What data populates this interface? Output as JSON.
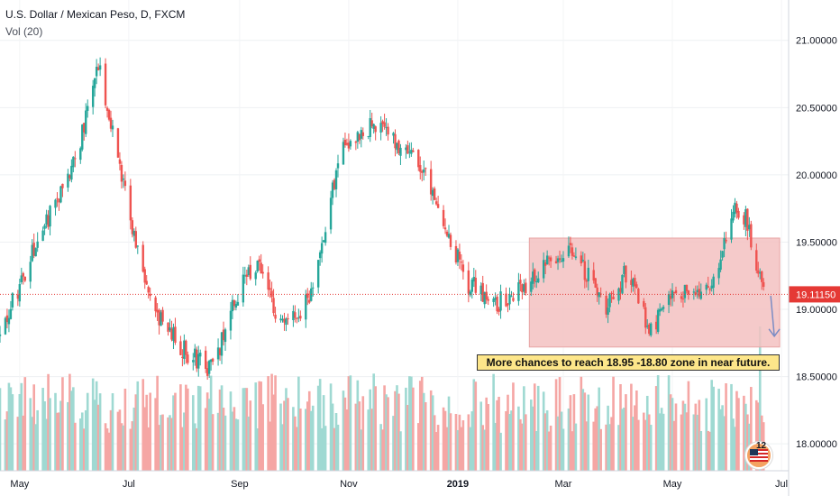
{
  "legend": {
    "title": "U.S. Dollar / Mexican Peso, D, FXCM",
    "volume": "Vol (20)"
  },
  "annotation": {
    "text": "More chances to reach 18.95 -18.80 zone in near future.",
    "badge_count": "12"
  },
  "colors": {
    "up": "#26a69a",
    "down": "#ef5350",
    "volume_up": "#9fd9d2",
    "volume_down": "#f5a6a4",
    "current_price_line": "#e53935",
    "zone_fill": "#f3c1c1",
    "arrow": "#7b8cc4",
    "annotation_bg": "#fde68a"
  },
  "chart_data": {
    "type": "candlestick",
    "symbol": "U.S. Dollar / Mexican Peso, D, FXCM",
    "price_axis": {
      "ticks": [
        "21.00000",
        "20.50000",
        "20.00000",
        "19.50000",
        "19.00000",
        "18.50000",
        "18.00000"
      ],
      "range": [
        17.8,
        21.3
      ]
    },
    "time_axis": {
      "ticks": [
        "May",
        "Jul",
        "Sep",
        "Nov",
        "2019",
        "Mar",
        "May",
        "Jul"
      ],
      "range": [
        "2018-04-20",
        "2019-07-05"
      ]
    },
    "current_price": "19.11150",
    "current_price_value": 19.1115,
    "zone": {
      "from_date": "2019-02-10",
      "to_date": "2019-06-30",
      "low": 18.72,
      "high": 19.53
    },
    "arrow": {
      "from_date": "2019-06-25",
      "to_date": "2019-06-27",
      "from_price": 19.1,
      "to_price": 18.8
    },
    "keypoints": [
      {
        "date": "2018-04-20",
        "close": 18.8
      },
      {
        "date": "2018-05-10",
        "close": 19.5
      },
      {
        "date": "2018-06-01",
        "close": 20.1
      },
      {
        "date": "2018-06-14",
        "close": 20.85
      },
      {
        "date": "2018-06-28",
        "close": 19.95
      },
      {
        "date": "2018-07-12",
        "close": 19.05
      },
      {
        "date": "2018-07-31",
        "close": 18.7
      },
      {
        "date": "2018-08-18",
        "close": 18.55
      },
      {
        "date": "2018-08-28",
        "close": 19.05
      },
      {
        "date": "2018-09-10",
        "close": 19.35
      },
      {
        "date": "2018-09-26",
        "close": 18.85
      },
      {
        "date": "2018-10-10",
        "close": 19.1
      },
      {
        "date": "2018-10-28",
        "close": 20.2
      },
      {
        "date": "2018-11-15",
        "close": 20.4
      },
      {
        "date": "2018-12-01",
        "close": 20.2
      },
      {
        "date": "2018-12-18",
        "close": 19.9
      },
      {
        "date": "2019-01-06",
        "close": 19.2
      },
      {
        "date": "2019-01-24",
        "close": 19.05
      },
      {
        "date": "2019-02-06",
        "close": 19.15
      },
      {
        "date": "2019-02-20",
        "close": 19.35
      },
      {
        "date": "2019-03-07",
        "close": 19.45
      },
      {
        "date": "2019-03-24",
        "close": 19.0
      },
      {
        "date": "2019-04-06",
        "close": 19.3
      },
      {
        "date": "2019-04-18",
        "close": 18.85
      },
      {
        "date": "2019-05-05",
        "close": 19.15
      },
      {
        "date": "2019-05-22",
        "close": 19.1
      },
      {
        "date": "2019-06-05",
        "close": 19.75
      },
      {
        "date": "2019-06-12",
        "close": 19.65
      },
      {
        "date": "2019-06-21",
        "close": 19.11
      }
    ]
  }
}
